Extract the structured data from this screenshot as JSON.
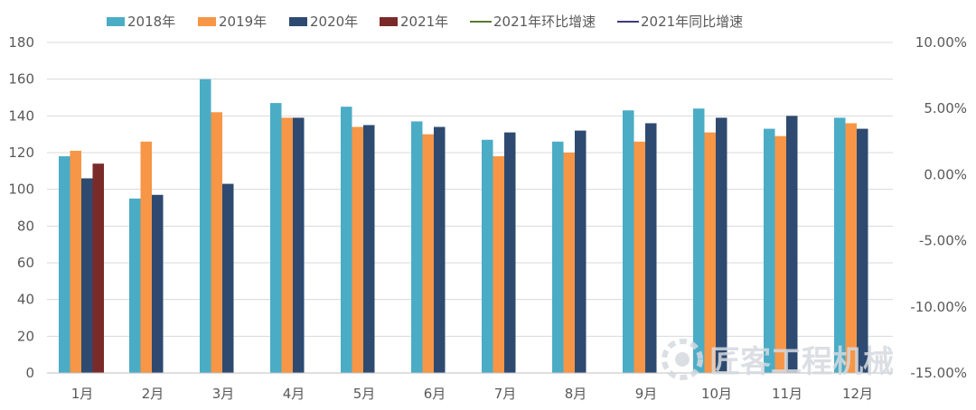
{
  "chart_data": {
    "type": "bar",
    "categories": [
      "1月",
      "2月",
      "3月",
      "4月",
      "5月",
      "6月",
      "7月",
      "8月",
      "9月",
      "10月",
      "11月",
      "12月"
    ],
    "series": [
      {
        "name": "2018年",
        "color": "#4bacc6",
        "values": [
          118,
          95,
          160,
          147,
          145,
          137,
          127,
          126,
          143,
          144,
          133,
          139
        ]
      },
      {
        "name": "2019年",
        "color": "#f79646",
        "values": [
          121,
          126,
          142,
          139,
          134,
          130,
          118,
          120,
          126,
          131,
          129,
          136
        ]
      },
      {
        "name": "2020年",
        "color": "#2e4a70",
        "values": [
          106,
          97,
          103,
          139,
          135,
          134,
          131,
          132,
          136,
          139,
          140,
          133
        ]
      },
      {
        "name": "2021年",
        "color": "#7b2a2a",
        "values": [
          114,
          null,
          null,
          null,
          null,
          null,
          null,
          null,
          null,
          null,
          null,
          null
        ]
      },
      {
        "name": "2021年环比增速",
        "color": "#5a7a2e",
        "type": "line",
        "axis": "right",
        "values": [
          null,
          null,
          null,
          null,
          null,
          null,
          null,
          null,
          null,
          null,
          null,
          null
        ]
      },
      {
        "name": "2021年同比增速",
        "color": "#3f3a7a",
        "type": "line",
        "axis": "right",
        "values": [
          null,
          null,
          null,
          null,
          null,
          null,
          null,
          null,
          null,
          null,
          null,
          null
        ]
      }
    ],
    "ylim": [
      0,
      180
    ],
    "yticks": [
      "0",
      "20",
      "40",
      "60",
      "80",
      "100",
      "120",
      "140",
      "160",
      "180"
    ],
    "y2lim": [
      -0.15,
      0.1
    ],
    "y2ticks": [
      "10.00%",
      "5.00%",
      "0.00%",
      "-5.00%",
      "-10.00%",
      "-15.00%"
    ],
    "grid": true,
    "legend_position": "top",
    "title": "",
    "xlabel": "",
    "ylabel": ""
  },
  "watermark": {
    "text": "匠客工程机械",
    "icon": "gear-logo-icon"
  }
}
